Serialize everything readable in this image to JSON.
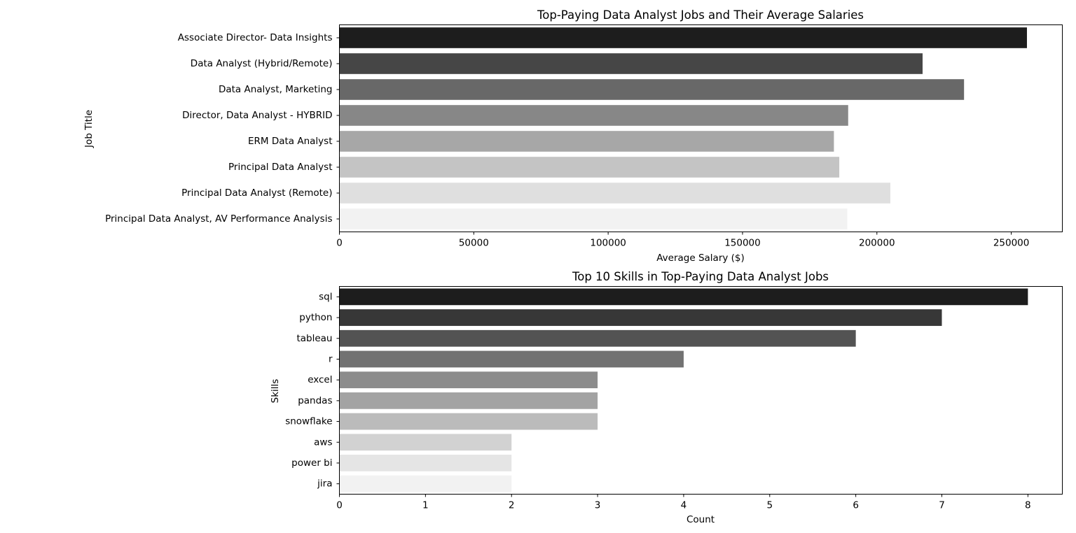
{
  "chart_data": [
    {
      "type": "bar",
      "orientation": "horizontal",
      "title": "Top-Paying Data Analyst Jobs and Their Average Salaries",
      "xlabel": "Average Salary ($)",
      "ylabel": "Job Title",
      "categories": [
        "Associate Director- Data Insights",
        "Data Analyst (Hybrid/Remote)",
        "Data Analyst, Marketing",
        "Director, Data Analyst - HYBRID",
        "ERM Data Analyst",
        "Principal Data Analyst",
        "Principal Data Analyst (Remote)",
        "Principal Data Analyst, AV Performance Analysis"
      ],
      "values": [
        255830,
        217000,
        232423,
        189309,
        184000,
        186000,
        205000,
        189000
      ],
      "colors": [
        "#1d1d1d",
        "#464646",
        "#686868",
        "#878787",
        "#a7a7a7",
        "#c4c4c4",
        "#dfdfdf",
        "#f2f2f2"
      ],
      "xlim": [
        0,
        269000
      ],
      "xticks": [
        0,
        50000,
        100000,
        150000,
        200000,
        250000
      ],
      "xtick_labels": [
        "0",
        "50000",
        "100000",
        "150000",
        "200000",
        "250000"
      ],
      "grid": false,
      "legend": "none"
    },
    {
      "type": "bar",
      "orientation": "horizontal",
      "title": "Top 10 Skills in Top-Paying Data Analyst Jobs",
      "xlabel": "Count",
      "ylabel": "Skills",
      "categories": [
        "sql",
        "python",
        "tableau",
        "r",
        "excel",
        "pandas",
        "snowflake",
        "aws",
        "power bi",
        "jira"
      ],
      "values": [
        8,
        7,
        6,
        4,
        3,
        3,
        3,
        2,
        2,
        2
      ],
      "colors": [
        "#1d1d1d",
        "#373737",
        "#535353",
        "#727272",
        "#8c8c8c",
        "#a3a3a3",
        "#bbbbbb",
        "#d2d2d2",
        "#e5e5e5",
        "#f2f2f2"
      ],
      "xlim": [
        0,
        8.4
      ],
      "xticks": [
        0,
        1,
        2,
        3,
        4,
        5,
        6,
        7,
        8
      ],
      "xtick_labels": [
        "0",
        "1",
        "2",
        "3",
        "4",
        "5",
        "6",
        "7",
        "8"
      ],
      "grid": false,
      "legend": "none"
    }
  ]
}
